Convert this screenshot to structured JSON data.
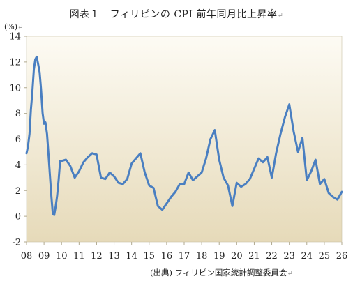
{
  "title": "図表１　フィリピンの CPI 前年同月比上昇率",
  "source": "(出典) フィリピン国家統計調整委員会",
  "edit_mark": "↵",
  "colors": {
    "line": "#4a7fc1",
    "plot_bg_top": "#fdfbf4",
    "plot_bg_bottom": "#e6dab9",
    "axis": "#b0a98f"
  },
  "chart_data": {
    "type": "line",
    "title": "図表１　フィリピンの CPI 前年同月比上昇率",
    "xlabel": "",
    "ylabel": "(%)",
    "ylim": [
      -2,
      14
    ],
    "yticks": [
      "-2",
      "0",
      "2",
      "4",
      "6",
      "8",
      "10",
      "12",
      "14"
    ],
    "xticks": [
      "08",
      "09",
      "10",
      "11",
      "12",
      "13",
      "14",
      "15",
      "16",
      "17",
      "18",
      "19",
      "20",
      "21",
      "22",
      "23",
      "24",
      "25",
      "26"
    ],
    "xlim": [
      2008.0,
      2026.0
    ],
    "grid": false,
    "series": [
      {
        "name": "",
        "x": [
          2008.0,
          2008.08,
          2008.17,
          2008.25,
          2008.33,
          2008.42,
          2008.5,
          2008.58,
          2008.67,
          2008.75,
          2008.83,
          2008.92,
          2009.0,
          2009.08,
          2009.17,
          2009.25,
          2009.33,
          2009.42,
          2009.5,
          2009.58,
          2009.67,
          2009.75,
          2009.83,
          2009.92,
          2010.0,
          2010.25,
          2010.5,
          2010.75,
          2011.0,
          2011.25,
          2011.5,
          2011.75,
          2012.0,
          2012.25,
          2012.5,
          2012.75,
          2013.0,
          2013.25,
          2013.5,
          2013.75,
          2014.0,
          2014.25,
          2014.5,
          2014.75,
          2015.0,
          2015.25,
          2015.5,
          2015.75,
          2016.0,
          2016.25,
          2016.5,
          2016.75,
          2017.0,
          2017.25,
          2017.5,
          2017.75,
          2018.0,
          2018.25,
          2018.5,
          2018.75,
          2019.0,
          2019.25,
          2019.5,
          2019.75,
          2020.0,
          2020.25,
          2020.5,
          2020.75,
          2021.0,
          2021.25,
          2021.5,
          2021.75,
          2022.0,
          2022.25,
          2022.5,
          2022.75,
          2023.0,
          2023.25,
          2023.5,
          2023.75,
          2024.0,
          2024.25,
          2024.5,
          2024.75,
          2025.0,
          2025.25,
          2025.5,
          2025.75,
          2026.0
        ],
        "values": [
          4.9,
          5.4,
          6.4,
          8.3,
          9.6,
          11.4,
          12.2,
          12.4,
          11.8,
          11.2,
          9.9,
          8.0,
          7.2,
          7.3,
          6.4,
          4.9,
          3.3,
          1.5,
          0.2,
          0.1,
          0.8,
          1.6,
          2.8,
          4.3,
          4.3,
          4.4,
          3.9,
          3.0,
          3.5,
          4.2,
          4.6,
          4.9,
          4.8,
          3.0,
          2.9,
          3.4,
          3.1,
          2.6,
          2.5,
          2.9,
          4.1,
          4.5,
          4.9,
          3.4,
          2.4,
          2.2,
          0.8,
          0.5,
          1.0,
          1.5,
          1.9,
          2.5,
          2.5,
          3.4,
          2.8,
          3.1,
          3.4,
          4.5,
          6.0,
          6.7,
          4.4,
          3.0,
          2.4,
          0.8,
          2.6,
          2.3,
          2.5,
          2.9,
          3.7,
          4.5,
          4.2,
          4.6,
          3.0,
          4.9,
          6.4,
          7.7,
          8.7,
          6.6,
          5.0,
          6.1,
          2.8,
          3.5,
          4.4,
          2.5,
          2.9,
          1.8,
          1.5,
          1.3,
          1.9
        ]
      }
    ]
  }
}
